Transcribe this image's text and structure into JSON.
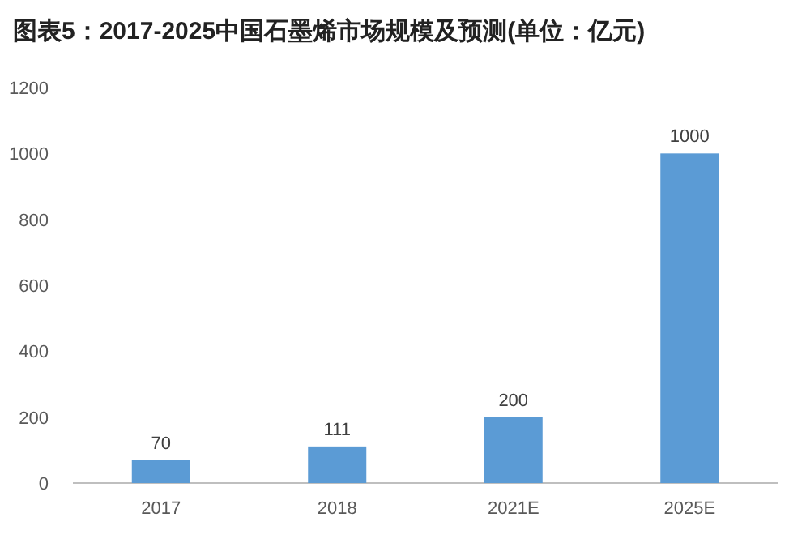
{
  "chart_data": {
    "type": "bar",
    "title": "图表5：2017-2025中国石墨烯市场规模及预测(单位：亿元)",
    "categories": [
      "2017",
      "2018",
      "2021E",
      "2025E"
    ],
    "values": [
      70,
      111,
      200,
      1000
    ],
    "color": "#5b9bd5",
    "ylim": [
      0,
      1200
    ],
    "yticks": [
      0,
      200,
      400,
      600,
      800,
      1000,
      1200
    ],
    "grid": false,
    "data_labels": true
  }
}
